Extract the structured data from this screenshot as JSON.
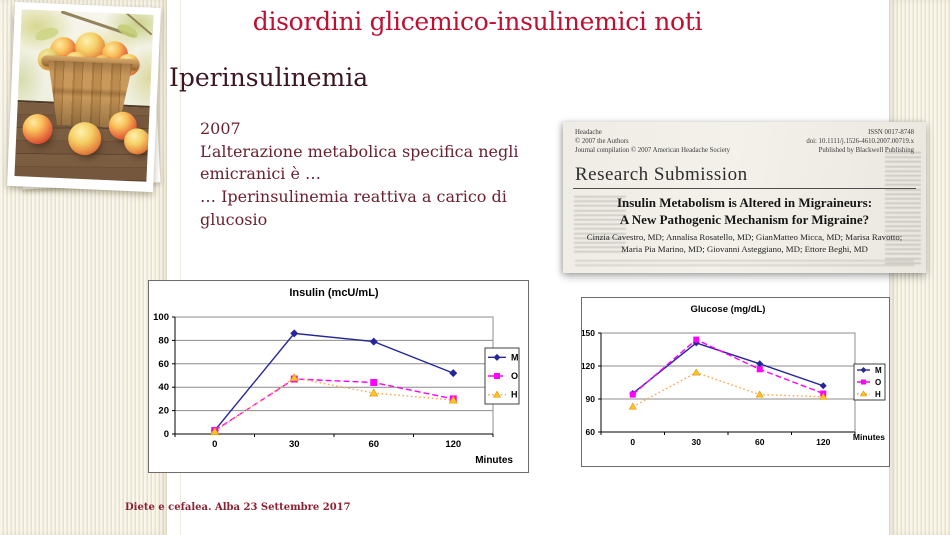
{
  "slide": {
    "title": "disordini glicemico-insulinemici noti",
    "heading": "Iperinsulinemia",
    "body": {
      "year": "2007",
      "line1": "L’alterazione metabolica specifica negli emicranici è …",
      "line2": "… Iperinsulinemia reattiva a carico di glucosio"
    },
    "footer": "Diete e cefalea. Alba 23 Settembre 2017"
  },
  "paper": {
    "journal": "Headache",
    "copyright": "© 2007 the Authors",
    "compilation": "Journal compilation © 2007 American Headache Society",
    "issn": "ISSN 0017-8748",
    "doi": "doi: 10.1111/j.1526-4610.2007.00719.x",
    "publisher": "Published by Blackwell Publishing",
    "section": "Research Submission",
    "title_line1": "Insulin Metabolism is Altered in Migraineurs:",
    "title_line2": "A New Pathogenic Mechanism for Migraine?",
    "authors_line1": "Cinzia Cavestro, MD; Annalisa Rosatello, MD; GianMatteo Micca, MD; Marisa Ravotto;",
    "authors_line2": "Maria Pia Marino, MD; Giovanni Asteggiano, MD; Ettore Beghi, MD"
  },
  "colors": {
    "title_red": "#bf1031",
    "heading_maroon": "#3b1620",
    "body_maroon": "#6b2130",
    "footer_red": "#8c2133",
    "cream": "#f1ecd9"
  },
  "chart_data": [
    {
      "type": "line",
      "title": "Insulin (mcU/mL)",
      "xlabel": "Minutes",
      "categories": [
        "0",
        "30",
        "60",
        "120"
      ],
      "ylim": [
        0,
        100
      ],
      "yticks": [
        0,
        20,
        40,
        60,
        80,
        100
      ],
      "grid": true,
      "legend_position": "right",
      "series": [
        {
          "name": "M",
          "values": [
            3,
            86,
            79,
            52
          ],
          "color": "#26269a",
          "marker": "diamond",
          "dash": "solid"
        },
        {
          "name": "O",
          "values": [
            3,
            47,
            44,
            30
          ],
          "color": "#ff00ff",
          "marker": "square",
          "dash": "dashed"
        },
        {
          "name": "H",
          "values": [
            2,
            48,
            35,
            29
          ],
          "color": "#ffa64d",
          "marker_color": "#ffc520",
          "marker_edge": "#db9400",
          "marker": "triangle",
          "dash": "dotted"
        }
      ]
    },
    {
      "type": "line",
      "title": "Glucose (mg/dL)",
      "xlabel": "Minutes",
      "categories": [
        "0",
        "30",
        "60",
        "120"
      ],
      "ylim": [
        60,
        150
      ],
      "yticks": [
        60,
        90,
        120,
        150
      ],
      "grid": true,
      "legend_position": "right",
      "series": [
        {
          "name": "M",
          "values": [
            95,
            141,
            122,
            102
          ],
          "color": "#26269a",
          "marker": "diamond",
          "dash": "solid"
        },
        {
          "name": "O",
          "values": [
            94,
            144,
            117,
            95
          ],
          "color": "#ff00ff",
          "marker": "square",
          "dash": "dashed"
        },
        {
          "name": "H",
          "values": [
            83,
            114,
            94,
            92
          ],
          "color": "#ffa64d",
          "marker_color": "#ffc520",
          "marker_edge": "#db9400",
          "marker": "triangle",
          "dash": "dotted"
        }
      ]
    }
  ]
}
